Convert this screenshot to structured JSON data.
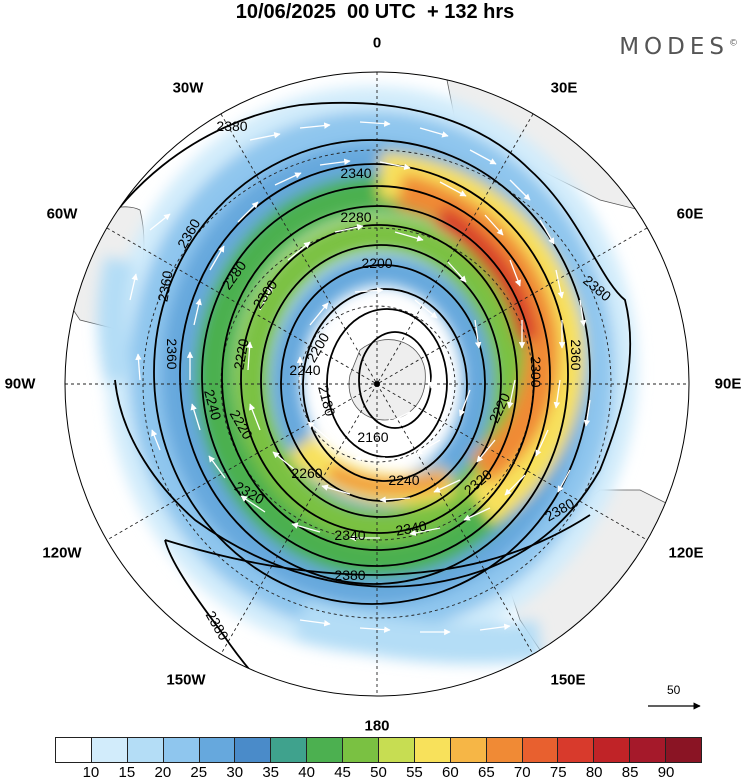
{
  "title": "10/06/2025  00 UTC  + 132 hrs",
  "brand": "MODES",
  "brand_mark": "©",
  "longitude_labels": {
    "lon_0": "0",
    "lon_30e": "30E",
    "lon_60e": "60E",
    "lon_90e": "90E",
    "lon_120e": "120E",
    "lon_150e": "150E",
    "lon_180": "180",
    "lon_150w": "150W",
    "lon_120w": "120W",
    "lon_90w": "90W",
    "lon_60w": "60W",
    "lon_30w": "30W"
  },
  "contour_labels": [
    "2380",
    "2340",
    "2360",
    "2280",
    "2200",
    "2380",
    "2360",
    "2280",
    "2300",
    "2300",
    "2220",
    "2360",
    "2200",
    "2240",
    "2180",
    "2220",
    "2360",
    "2240",
    "2160",
    "2220",
    "2380",
    "2260",
    "2240",
    "2320",
    "2320",
    "2340",
    "2340",
    "2380",
    "2380"
  ],
  "wind_scale_label": "50",
  "colorbar": {
    "colors": [
      "#ffffff",
      "#d2ecfb",
      "#b4ddf6",
      "#8fc6ee",
      "#66a8dd",
      "#4a8bc9",
      "#3fa28d",
      "#4cb050",
      "#7ac142",
      "#c7dd52",
      "#f8e15b",
      "#f6b646",
      "#f08a35",
      "#e8602f",
      "#d83a2c",
      "#c02327",
      "#a5192a",
      "#8a1424"
    ],
    "ticks": [
      "10",
      "15",
      "20",
      "25",
      "30",
      "35",
      "40",
      "45",
      "50",
      "55",
      "60",
      "65",
      "70",
      "75",
      "80",
      "85",
      "90"
    ]
  }
}
